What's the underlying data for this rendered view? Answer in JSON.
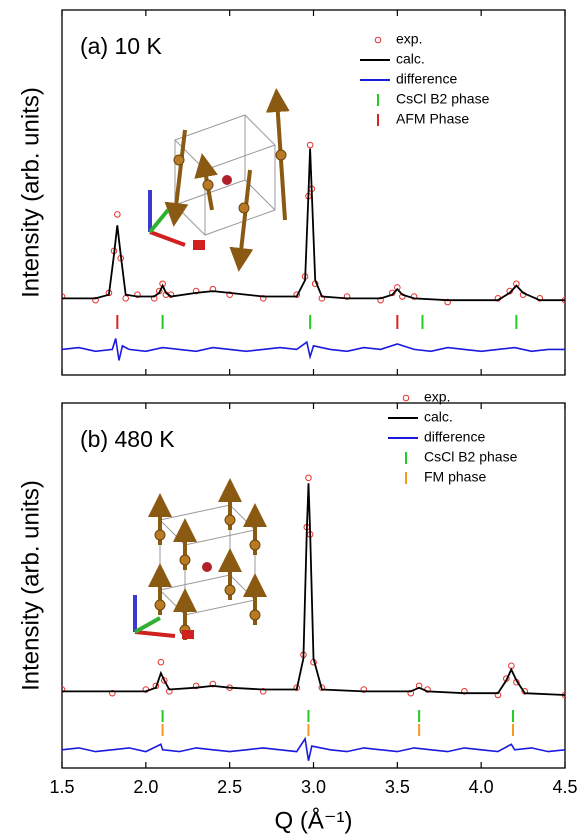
{
  "chart_data": [
    {
      "type": "line",
      "title": "(a) 10 K",
      "ylabel": "Intensity (arb. units)",
      "xlim": [
        1.5,
        4.5
      ],
      "ylim": [
        0,
        100
      ],
      "legend": "upper right",
      "series": [
        {
          "name": "exp.",
          "color": "#e8302a",
          "marker": "circle",
          "x": [
            1.5,
            1.7,
            1.78,
            1.81,
            1.83,
            1.85,
            1.88,
            1.95,
            2.05,
            2.08,
            2.1,
            2.12,
            2.15,
            2.3,
            2.4,
            2.5,
            2.7,
            2.9,
            2.95,
            2.97,
            2.98,
            2.99,
            3.01,
            3.05,
            3.2,
            3.4,
            3.47,
            3.5,
            3.53,
            3.6,
            3.8,
            4.1,
            4.17,
            4.21,
            4.25,
            4.35,
            4.5
          ],
          "values": [
            21.5,
            20.5,
            22.5,
            34,
            44,
            32,
            21,
            22,
            21,
            23,
            25,
            22,
            22,
            23,
            23.5,
            22,
            21,
            22,
            27,
            49,
            63,
            51,
            25,
            21,
            21.5,
            20.5,
            22.5,
            24,
            21.5,
            21.5,
            20,
            21,
            23,
            25,
            22,
            21,
            20.5
          ]
        },
        {
          "name": "calc.",
          "color": "#000000",
          "x": [
            1.5,
            1.7,
            1.78,
            1.81,
            1.83,
            1.85,
            1.88,
            1.95,
            2.05,
            2.08,
            2.1,
            2.12,
            2.15,
            2.3,
            2.4,
            2.5,
            2.7,
            2.9,
            2.95,
            2.97,
            2.98,
            2.99,
            3.01,
            3.05,
            3.2,
            3.4,
            3.47,
            3.5,
            3.53,
            3.6,
            3.8,
            4.1,
            4.17,
            4.21,
            4.25,
            4.35,
            4.5
          ],
          "values": [
            21,
            21,
            22,
            33,
            41,
            33,
            22,
            21.5,
            21.5,
            22.5,
            24.5,
            22.5,
            21.5,
            22.5,
            23,
            22.5,
            21.5,
            21.5,
            26,
            50,
            62,
            50,
            26,
            21.5,
            21,
            21,
            22,
            23.5,
            22,
            21,
            20.5,
            20.5,
            22.5,
            24.5,
            22.5,
            20.5,
            20.5
          ]
        },
        {
          "name": "difference",
          "color": "#1a1adf",
          "x": [
            1.5,
            1.6,
            1.7,
            1.8,
            1.82,
            1.84,
            1.86,
            1.9,
            2.0,
            2.1,
            2.2,
            2.3,
            2.4,
            2.5,
            2.6,
            2.7,
            2.8,
            2.9,
            2.96,
            2.98,
            3.0,
            3.1,
            3.2,
            3.3,
            3.4,
            3.5,
            3.6,
            3.7,
            3.8,
            3.9,
            4.0,
            4.1,
            4.2,
            4.3,
            4.4,
            4.5
          ],
          "values": [
            7,
            7.5,
            6.5,
            7,
            10,
            4,
            8,
            7,
            6.5,
            7.5,
            7,
            6.5,
            7.5,
            7,
            6.5,
            7,
            7.5,
            7,
            9,
            5,
            8,
            7,
            6.5,
            7.5,
            7,
            8.5,
            7,
            6.5,
            7.5,
            7,
            6.5,
            7,
            7.5,
            6.5,
            7,
            7
          ]
        }
      ],
      "phases": [
        {
          "name": "CsCl B2 phase",
          "color": "#22cc22",
          "positions": [
            2.1,
            2.98,
            3.65,
            4.21
          ]
        },
        {
          "name": "AFM Phase",
          "color": "#e02020",
          "positions": [
            1.83,
            3.5
          ]
        }
      ]
    },
    {
      "type": "line",
      "title": "(b) 480 K",
      "ylabel": "Intensity (arb. units)",
      "xlabel": "Q (Å⁻¹)",
      "xlim": [
        1.5,
        4.5
      ],
      "ylim": [
        0,
        100
      ],
      "legend": "upper right",
      "xticks": [
        1.5,
        {
          "value": 2,
          "label": "2.0"
        },
        2.5,
        {
          "value": 3,
          "label": "3.0"
        },
        3.5,
        {
          "value": 4,
          "label": "4.0"
        },
        4.5
      ],
      "series": [
        {
          "name": "exp.",
          "color": "#e8302a",
          "marker": "circle",
          "x": [
            1.5,
            1.8,
            2.0,
            2.06,
            2.09,
            2.11,
            2.14,
            2.3,
            2.4,
            2.5,
            2.7,
            2.9,
            2.94,
            2.96,
            2.97,
            2.98,
            3.0,
            3.05,
            3.3,
            3.58,
            3.63,
            3.68,
            3.9,
            4.1,
            4.15,
            4.18,
            4.21,
            4.26,
            4.5
          ],
          "values": [
            21.5,
            20.5,
            21.5,
            22.5,
            29,
            24,
            21,
            22.5,
            23,
            22,
            21,
            22,
            31,
            66,
            79.5,
            64,
            29,
            22,
            21.5,
            20.5,
            22.5,
            21.5,
            21,
            20,
            24.5,
            28,
            23.5,
            21,
            20
          ]
        },
        {
          "name": "calc.",
          "color": "#000000",
          "x": [
            1.5,
            1.8,
            2.0,
            2.06,
            2.09,
            2.11,
            2.14,
            2.3,
            2.4,
            2.5,
            2.7,
            2.9,
            2.94,
            2.96,
            2.97,
            2.98,
            3.0,
            3.05,
            3.3,
            3.58,
            3.63,
            3.68,
            3.9,
            4.1,
            4.15,
            4.18,
            4.21,
            4.26,
            4.5
          ],
          "values": [
            21,
            21,
            21,
            22,
            26,
            24,
            21.5,
            22,
            22.5,
            22,
            21.5,
            21.5,
            30,
            65,
            78,
            65,
            30,
            21.5,
            21,
            21,
            22,
            21,
            20.5,
            20.5,
            24,
            27,
            24,
            20.5,
            20
          ]
        },
        {
          "name": "difference",
          "color": "#1a1adf",
          "x": [
            1.5,
            1.6,
            1.7,
            1.8,
            1.9,
            2.0,
            2.09,
            2.1,
            2.2,
            2.3,
            2.4,
            2.5,
            2.6,
            2.7,
            2.8,
            2.9,
            2.95,
            2.97,
            2.99,
            3.1,
            3.2,
            3.3,
            3.4,
            3.5,
            3.6,
            3.7,
            3.8,
            3.9,
            4.0,
            4.1,
            4.18,
            4.2,
            4.3,
            4.4,
            4.5
          ],
          "values": [
            5,
            5.5,
            4.5,
            5,
            5.5,
            4.5,
            6.5,
            5,
            4.5,
            5.5,
            5,
            4.5,
            5,
            5.5,
            5,
            4.5,
            8,
            2,
            6,
            5,
            4.5,
            5.5,
            5,
            4.5,
            5.5,
            5,
            4.5,
            5.5,
            5,
            4.5,
            6.5,
            5,
            5.5,
            4.5,
            5
          ]
        }
      ],
      "phases": [
        {
          "name": "CsCl B2 phase",
          "color": "#22cc22",
          "positions": [
            2.1,
            2.97,
            3.63,
            4.19
          ]
        },
        {
          "name": "FM phase",
          "color": "#f39a1e",
          "positions": [
            2.1,
            2.97,
            3.63,
            4.19
          ]
        }
      ]
    }
  ]
}
